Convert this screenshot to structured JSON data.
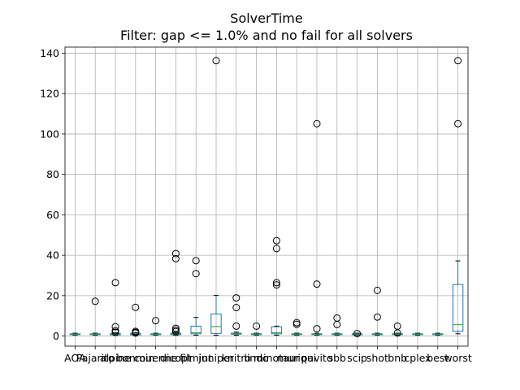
{
  "chart_data": {
    "type": "box",
    "title": "SolverTime",
    "subtitle": "Filter: gap <= 1.0% and no fail for all solvers",
    "grid": true,
    "ylim": [
      -5,
      143
    ],
    "yticks": [
      0,
      20,
      40,
      60,
      80,
      100,
      120,
      140
    ],
    "categories": [
      "AOA",
      "Pajarito",
      "alpine",
      "bonmin",
      "couenne",
      "dicopt",
      "filmint",
      "juniper",
      "knitro",
      "lindo",
      "minotaur",
      "muriqui",
      "pavito",
      "sbb",
      "scip",
      "shot",
      "bnb",
      "cplex",
      "best",
      "worst"
    ],
    "colors": {
      "box": "#1f77b4",
      "median": "#2ca02c",
      "outlier": "#000000",
      "grid": "#b0b0b0"
    },
    "boxes": [
      {
        "q1": 0.7,
        "median": 0.9,
        "q3": 1.1,
        "whislo": 0.4,
        "whishi": 1.4,
        "fliers": []
      },
      {
        "q1": 0.7,
        "median": 0.9,
        "q3": 1.1,
        "whislo": 0.4,
        "whishi": 1.4,
        "fliers": [
          17.2
        ]
      },
      {
        "q1": 0.6,
        "median": 0.9,
        "q3": 1.2,
        "whislo": 0.3,
        "whishi": 1.6,
        "fliers": [
          26.4,
          4.6,
          2.6,
          1.9
        ]
      },
      {
        "q1": 0.6,
        "median": 0.9,
        "q3": 1.3,
        "whislo": 0.3,
        "whishi": 1.7,
        "fliers": [
          14.2,
          2.3,
          1.8,
          1.5
        ]
      },
      {
        "q1": 0.7,
        "median": 0.9,
        "q3": 1.1,
        "whislo": 0.4,
        "whishi": 1.4,
        "fliers": [
          7.6
        ]
      },
      {
        "q1": 0.7,
        "median": 1.0,
        "q3": 1.4,
        "whislo": 0.4,
        "whishi": 1.9,
        "fliers": [
          40.8,
          38.3,
          3.8,
          2.9,
          2.2
        ]
      },
      {
        "q1": 1.1,
        "median": 1.6,
        "q3": 4.9,
        "whislo": 0.4,
        "whishi": 9.2,
        "fliers": [
          37.3,
          30.9
        ]
      },
      {
        "q1": 1.3,
        "median": 4.7,
        "q3": 10.9,
        "whislo": 0.4,
        "whishi": 20.1,
        "fliers": [
          136.3
        ]
      },
      {
        "q1": 0.9,
        "median": 1.1,
        "q3": 1.4,
        "whislo": 0.4,
        "whishi": 1.9,
        "fliers": [
          18.9,
          14.1,
          4.9
        ]
      },
      {
        "q1": 0.7,
        "median": 0.9,
        "q3": 1.1,
        "whislo": 0.4,
        "whishi": 1.4,
        "fliers": [
          4.9
        ]
      },
      {
        "q1": 1.1,
        "median": 1.6,
        "q3": 4.6,
        "whislo": 0.4,
        "whishi": 4.9,
        "fliers": [
          47.2,
          43.3,
          26.4,
          25.3
        ]
      },
      {
        "q1": 0.7,
        "median": 0.9,
        "q3": 1.1,
        "whislo": 0.4,
        "whishi": 1.4,
        "fliers": [
          6.6,
          5.8
        ]
      },
      {
        "q1": 0.7,
        "median": 0.9,
        "q3": 1.1,
        "whislo": 0.4,
        "whishi": 1.4,
        "fliers": [
          105.1,
          25.7,
          3.6
        ]
      },
      {
        "q1": 0.7,
        "median": 0.9,
        "q3": 1.1,
        "whislo": 0.4,
        "whishi": 1.4,
        "fliers": [
          8.9,
          5.7
        ]
      },
      {
        "q1": 0.7,
        "median": 0.9,
        "q3": 1.1,
        "whislo": 0.4,
        "whishi": 1.4,
        "fliers": [
          1.2
        ]
      },
      {
        "q1": 0.7,
        "median": 0.9,
        "q3": 1.1,
        "whislo": 0.4,
        "whishi": 1.4,
        "fliers": [
          22.6,
          9.4
        ]
      },
      {
        "q1": 0.7,
        "median": 0.9,
        "q3": 1.1,
        "whislo": 0.4,
        "whishi": 1.4,
        "fliers": [
          4.9,
          1.5
        ]
      },
      {
        "q1": 0.7,
        "median": 0.9,
        "q3": 1.1,
        "whislo": 0.4,
        "whishi": 1.4,
        "fliers": []
      },
      {
        "q1": 0.7,
        "median": 0.9,
        "q3": 1.1,
        "whislo": 0.4,
        "whishi": 1.4,
        "fliers": []
      },
      {
        "q1": 2.4,
        "median": 5.6,
        "q3": 25.5,
        "whislo": 1.1,
        "whishi": 37.2,
        "fliers": [
          136.3,
          105.1
        ]
      }
    ]
  }
}
